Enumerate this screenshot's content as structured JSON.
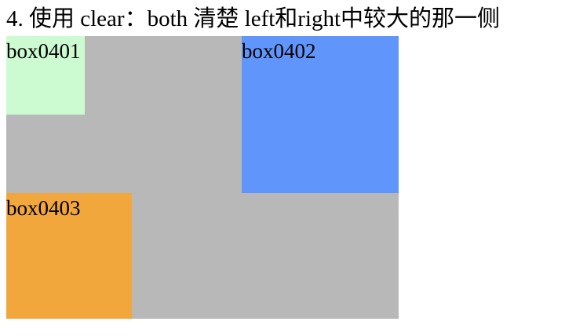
{
  "page": {
    "title": "4. 使用 clear：both 清楚 left和right中较大的那一侧"
  },
  "colors": {
    "container": "#b8b8b8",
    "box0401": "#ccfad1",
    "box0402": "#6096fb",
    "box0403": "#f2a73d"
  },
  "boxes": [
    {
      "label": "box0401"
    },
    {
      "label": "box0402"
    },
    {
      "label": "box0403"
    }
  ]
}
